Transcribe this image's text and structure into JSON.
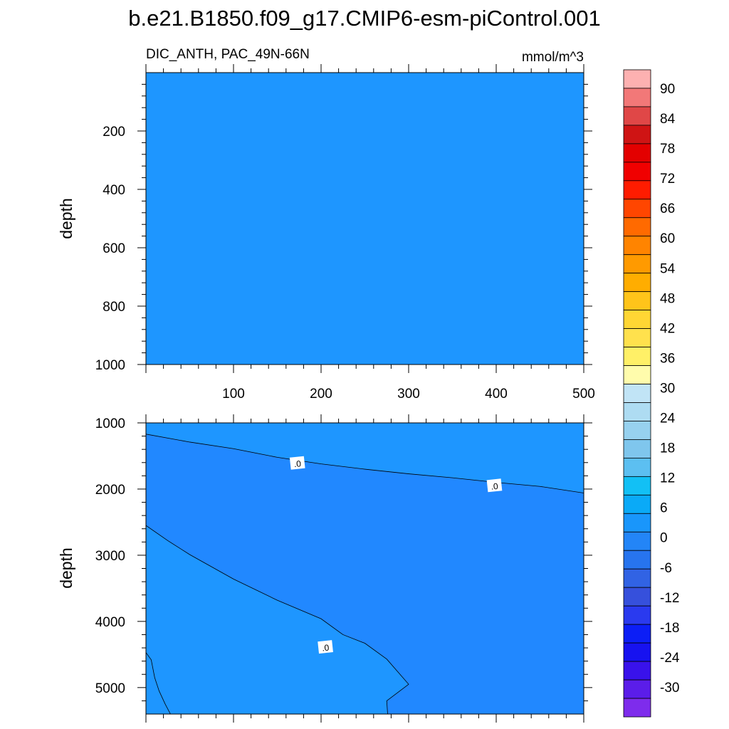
{
  "title": "b.e21.B1850.f09_g17.CMIP6-esm-piControl.001",
  "left_subtitle": "DIC_ANTH, PAC_49N-66N",
  "right_subtitle": "mmol/m^3",
  "chart_data": [
    {
      "type": "contour",
      "panel": "upper",
      "ylabel": "depth",
      "xlabel": "",
      "xlim": [
        0,
        500
      ],
      "ylim": [
        1000,
        0
      ],
      "x_ticks": [
        100,
        200,
        300,
        400,
        500
      ],
      "y_ticks": [
        200,
        400,
        600,
        800,
        1000
      ],
      "fill_value_range": [
        0,
        6
      ],
      "contour_lines": []
    },
    {
      "type": "contour",
      "panel": "lower",
      "ylabel": "depth",
      "xlabel": "",
      "xlim": [
        0,
        500
      ],
      "ylim": [
        5400,
        1000
      ],
      "y_ticks": [
        1000,
        2000,
        3000,
        4000,
        5000
      ],
      "regions": [
        {
          "range": [
            0,
            6
          ],
          "location": "shallow band above upper zero contour"
        },
        {
          "range": [
            -6,
            0
          ],
          "location": "middle band between zero contours"
        },
        {
          "range": [
            0,
            6
          ],
          "location": "deep lower-left region"
        }
      ],
      "contour_lines": [
        {
          "level": 0,
          "label": ".0",
          "points": [
            [
              0,
              1170
            ],
            [
              50,
              1290
            ],
            [
              100,
              1390
            ],
            [
              150,
              1520
            ],
            [
              200,
              1620
            ],
            [
              250,
              1700
            ],
            [
              300,
              1770
            ],
            [
              350,
              1830
            ],
            [
              400,
              1900
            ],
            [
              450,
              1960
            ],
            [
              500,
              2060
            ]
          ],
          "label_positions": [
            [
              173,
              1610
            ],
            [
              398,
              1950
            ]
          ]
        },
        {
          "level": 0,
          "label": ".0",
          "points": [
            [
              0,
              2550
            ],
            [
              25,
              2780
            ],
            [
              50,
              2990
            ],
            [
              100,
              3360
            ],
            [
              150,
              3680
            ],
            [
              200,
              3960
            ],
            [
              225,
              4200
            ],
            [
              250,
              4330
            ],
            [
              275,
              4570
            ],
            [
              300,
              4950
            ],
            [
              275,
              5200
            ],
            [
              276,
              5400
            ]
          ],
          "label_positions": [
            [
              205,
              4390
            ]
          ]
        },
        {
          "level": 0,
          "label": "",
          "points": [
            [
              0,
              4470
            ],
            [
              6,
              4580
            ],
            [
              10,
              4850
            ],
            [
              15,
              5050
            ],
            [
              22,
              5250
            ],
            [
              28,
              5400
            ]
          ],
          "label_positions": []
        }
      ]
    }
  ],
  "colorbar": {
    "labels": [
      "90",
      "84",
      "78",
      "72",
      "66",
      "60",
      "54",
      "48",
      "42",
      "36",
      "30",
      "24",
      "18",
      "12",
      "6",
      "0",
      "-6",
      "-12",
      "-18",
      "-24",
      "-30"
    ],
    "colors": [
      "#fdb1b1",
      "#f27878",
      "#e04747",
      "#cf1414",
      "#e30000",
      "#f00000",
      "#ff1c00",
      "#ff4600",
      "#ff6a00",
      "#ff8400",
      "#ff9a00",
      "#ffad00",
      "#ffc41a",
      "#ffd634",
      "#ffe14d",
      "#fff067",
      "#fffcac",
      "#c1e4f6",
      "#aedcf2",
      "#97d1ef",
      "#7fc6ed",
      "#5cbff1",
      "#12c0f5",
      "#0aaaf7",
      "#1996fb",
      "#2385f7",
      "#2774ee",
      "#3163e4",
      "#3650dc",
      "#2a3aef",
      "#0c1ef6",
      "#1712f0",
      "#3912eb",
      "#5b1de9",
      "#7e2cec"
    ]
  },
  "colors": {
    "fill_pos_0_6": "#1e96ff",
    "fill_neg_6_0": "#2188ff"
  }
}
